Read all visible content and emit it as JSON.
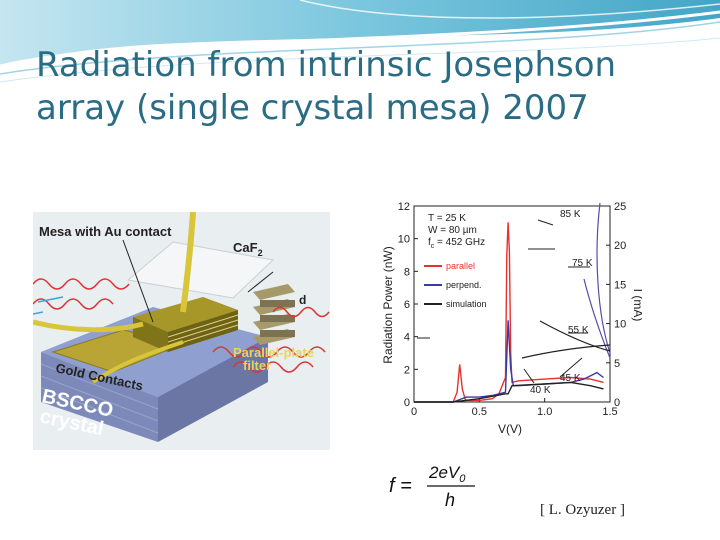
{
  "slide": {
    "title_line1": "Radiation from intrinsic Josephson",
    "title_line2": "array (single crystal mesa) 2007",
    "citation": "[ L. Ozyuzer ]"
  },
  "left_figure": {
    "label_mesa": "Mesa with Au contact",
    "label_caf2_base": "CaF",
    "label_caf2_sub": "2",
    "label_d": "d",
    "label_filter_1": "Parallel-plate",
    "label_filter_2": "filter",
    "label_gold": "Gold Contacts",
    "label_bscco_1": "BSCCO",
    "label_bscco_2": "crystal"
  },
  "right_figure": {
    "params": {
      "t": "T = 25 K",
      "w": "W = 80 µm",
      "fc": "f",
      "fc_sub": "c",
      "fc_rest": " = 452 GHz"
    },
    "legend": {
      "parallel": "parallel",
      "perpend": "perpend.",
      "simulation": "simulation"
    },
    "temps": {
      "t85": "85 K",
      "t75": "75 K",
      "t55": "55 K",
      "t45": "45 K",
      "t40": "40 K"
    },
    "colors": {
      "parallel": "#e8312f",
      "perpend": "#3a3aa5",
      "simulation": "#222222"
    }
  },
  "chart_data": {
    "type": "line",
    "xlabel": "V(V)",
    "ylabel": "Radiation Power (nW)",
    "y2label": "I (mA)",
    "xlim": [
      0,
      1.5
    ],
    "ylim": [
      0,
      12
    ],
    "y2lim": [
      0,
      25
    ],
    "xticks": [
      "0",
      "0.5",
      "1.0",
      "1.5"
    ],
    "yticks": [
      "0",
      "2",
      "4",
      "6",
      "8",
      "10",
      "12"
    ],
    "y2ticks": [
      "0",
      "5",
      "10",
      "15",
      "20",
      "25"
    ],
    "series": [
      {
        "name": "parallel",
        "color": "#e8312f",
        "x": [
          0,
          0.2,
          0.3,
          0.33,
          0.35,
          0.37,
          0.39,
          0.4,
          0.5,
          0.6,
          0.65,
          0.7,
          0.71,
          0.72,
          0.73,
          0.74,
          0.75,
          0.8,
          1.0,
          1.2,
          1.35,
          1.45
        ],
        "y": [
          0,
          0,
          0,
          0.6,
          2.3,
          0.8,
          0.2,
          0.1,
          0.1,
          0.2,
          0.5,
          1.5,
          9.0,
          11.0,
          9.2,
          3.0,
          1.2,
          1.3,
          1.4,
          1.5,
          1.4,
          1.2
        ]
      },
      {
        "name": "perpend.",
        "color": "#3a3aa5",
        "x": [
          0,
          0.3,
          0.4,
          0.5,
          0.6,
          0.7,
          0.72,
          0.74,
          0.76,
          0.8,
          1.0,
          1.2,
          1.3,
          1.4,
          1.45
        ],
        "y": [
          0,
          0,
          0.3,
          0.3,
          0.4,
          0.6,
          5.0,
          2.0,
          1.0,
          1.0,
          1.1,
          1.2,
          1.4,
          1.8,
          1.5
        ]
      },
      {
        "name": "simulation",
        "color": "#222222",
        "x": [
          0,
          0.3,
          0.5,
          0.7,
          0.72,
          0.75,
          1.0,
          1.2,
          1.35,
          1.45
        ],
        "y": [
          0,
          0,
          0.2,
          0.5,
          0.5,
          1.0,
          1.1,
          1.2,
          1.0,
          0.8
        ]
      }
    ]
  },
  "formula": {
    "lhs": "f =",
    "numerator": "2eV",
    "numerator_sub": "0",
    "denominator": "h"
  }
}
